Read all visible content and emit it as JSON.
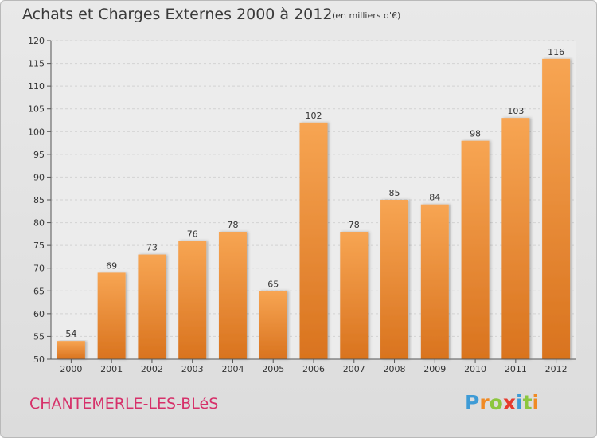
{
  "header": {
    "title": "Achats et Charges Externes 2000 à 2012",
    "subtitle": "(en milliers d'€)"
  },
  "footer": {
    "commune": "CHANTEMERLE-LES-BLéS",
    "logo_letters": [
      "P",
      "r",
      "o",
      "x",
      "i",
      "t",
      "i"
    ],
    "logo_colors": [
      "#3e9bd6",
      "#f08a24",
      "#8cc63f",
      "#e63b2e",
      "#3e9bd6",
      "#8cc63f",
      "#f08a24"
    ]
  },
  "chart_data": {
    "type": "bar",
    "title": "Achats et Charges Externes 2000 à 2012",
    "subtitle": "(en milliers d'€)",
    "categories": [
      "2000",
      "2001",
      "2002",
      "2003",
      "2004",
      "2005",
      "2006",
      "2007",
      "2008",
      "2009",
      "2010",
      "2011",
      "2012"
    ],
    "values": [
      54,
      69,
      73,
      76,
      78,
      65,
      102,
      78,
      85,
      84,
      98,
      103,
      116
    ],
    "ylim": [
      50,
      120
    ],
    "yticks": [
      50,
      55,
      60,
      65,
      70,
      75,
      80,
      85,
      90,
      95,
      100,
      105,
      110,
      115,
      120
    ],
    "grid": true,
    "data_labels": true,
    "bar_color_top": "#f7a553",
    "bar_color_bottom": "#d9731e"
  }
}
